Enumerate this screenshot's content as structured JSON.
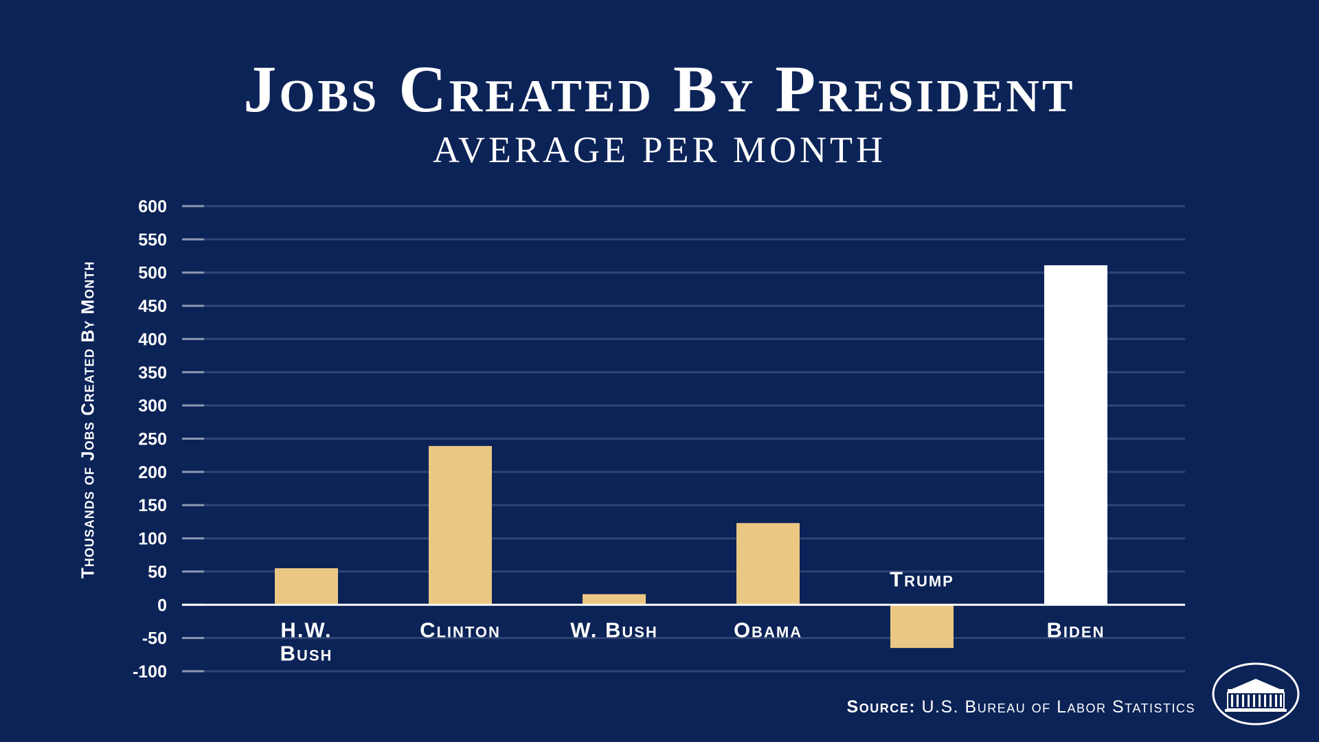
{
  "header": {
    "title": "Jobs Created By President",
    "subtitle": "AVERAGE PER MONTH"
  },
  "footer": {
    "source_label": "Source:",
    "source_text": "U.S. Bureau of Labor Statistics",
    "seal_icon": "white-house-seal-icon"
  },
  "colors": {
    "background": "#0c2357",
    "bar": "#ebc784",
    "highlight_bar": "#ffffff",
    "gridline": "#2e4575",
    "text": "#ffffff"
  },
  "chart_data": {
    "type": "bar",
    "title": "Jobs Created By President",
    "subtitle": "AVERAGE PER MONTH",
    "xlabel": "",
    "ylabel": "Thousands of Jobs Created By Month",
    "categories": [
      "H.W. Bush",
      "Clinton",
      "W. Bush",
      "Obama",
      "Trump",
      "Biden"
    ],
    "category_labels": [
      [
        "H.W.",
        "Bush"
      ],
      [
        "Clinton"
      ],
      [
        "W. Bush"
      ],
      [
        "Obama"
      ],
      [
        "Trump"
      ],
      [
        "Biden"
      ]
    ],
    "values": [
      55,
      239,
      16,
      123,
      -65,
      511
    ],
    "highlight": "Biden",
    "ylim": [
      -100,
      600
    ],
    "yticks": [
      -100,
      -50,
      0,
      50,
      100,
      150,
      200,
      250,
      300,
      350,
      400,
      450,
      500,
      550,
      600
    ],
    "grid": true,
    "legend": "none"
  }
}
